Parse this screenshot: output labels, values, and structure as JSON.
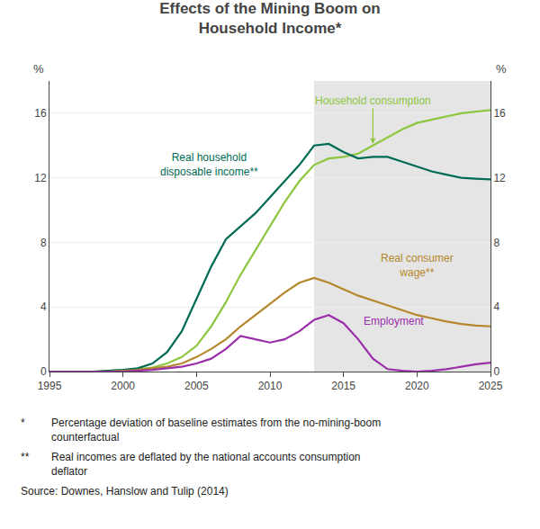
{
  "chart_data": {
    "type": "line",
    "title": "Effects of the Mining Boom on\nHousehold Income*",
    "x": [
      1995,
      1996,
      1997,
      1998,
      1999,
      2000,
      2001,
      2002,
      2003,
      2004,
      2005,
      2006,
      2007,
      2008,
      2009,
      2010,
      2011,
      2012,
      2013,
      2014,
      2015,
      2016,
      2017,
      2018,
      2019,
      2020,
      2021,
      2022,
      2023,
      2024,
      2025
    ],
    "series": [
      {
        "name": "Household consumption",
        "color": "#8DC63F",
        "values": [
          0.0,
          0.0,
          0.0,
          0.0,
          0.05,
          0.1,
          0.15,
          0.25,
          0.5,
          0.9,
          1.6,
          2.8,
          4.3,
          6.0,
          7.5,
          9.0,
          10.5,
          11.8,
          12.8,
          13.2,
          13.3,
          13.5,
          14.0,
          14.5,
          15.0,
          15.4,
          15.6,
          15.8,
          16.0,
          16.1,
          16.2
        ]
      },
      {
        "name": "Real household\ndisposable income**",
        "color": "#006B54",
        "values": [
          0.0,
          0.0,
          0.0,
          0.0,
          0.05,
          0.1,
          0.2,
          0.5,
          1.2,
          2.5,
          4.5,
          6.5,
          8.2,
          9.0,
          9.8,
          10.8,
          11.8,
          12.8,
          14.0,
          14.1,
          13.6,
          13.2,
          13.3,
          13.3,
          13.0,
          12.7,
          12.4,
          12.2,
          12.0,
          11.95,
          11.9
        ]
      },
      {
        "name": "Real consumer\nwage**",
        "color": "#B5862A",
        "values": [
          0.0,
          0.0,
          0.0,
          0.0,
          0.0,
          0.05,
          0.1,
          0.2,
          0.3,
          0.5,
          0.9,
          1.4,
          2.0,
          2.8,
          3.5,
          4.2,
          4.9,
          5.5,
          5.8,
          5.5,
          5.1,
          4.7,
          4.4,
          4.1,
          3.8,
          3.5,
          3.3,
          3.1,
          2.95,
          2.85,
          2.8
        ]
      },
      {
        "name": "Employment",
        "color": "#9B2FAA",
        "values": [
          0.0,
          0.0,
          0.0,
          0.0,
          0.0,
          0.0,
          0.05,
          0.1,
          0.2,
          0.3,
          0.5,
          0.8,
          1.4,
          2.2,
          2.0,
          1.8,
          2.0,
          2.5,
          3.2,
          3.5,
          3.0,
          2.0,
          0.8,
          0.15,
          0.05,
          0.0,
          0.05,
          0.15,
          0.3,
          0.45,
          0.55
        ]
      }
    ],
    "xlim": [
      1995,
      2025
    ],
    "xticks": [
      1995,
      2000,
      2005,
      2010,
      2015,
      2020,
      2025
    ],
    "ylim": [
      0,
      18
    ],
    "yticks": [
      0,
      4,
      8,
      12,
      16
    ],
    "y2lim": [
      0,
      18
    ],
    "y2ticks": [
      0,
      4,
      8,
      12,
      16
    ],
    "ylabel": "%",
    "y2label": "%",
    "grid": true,
    "shaded_region": {
      "x": [
        2013,
        2025
      ],
      "color": "#e5e5e5"
    },
    "footnotes": [
      {
        "marker": "*",
        "text": "Percentage deviation of baseline estimates from the no-mining-boom\ncounterfactual"
      },
      {
        "marker": "**",
        "text": "Real incomes are deflated by the national accounts consumption\ndeflator"
      }
    ],
    "source": "Source: Downes, Hanslow and Tulip (2014)"
  }
}
